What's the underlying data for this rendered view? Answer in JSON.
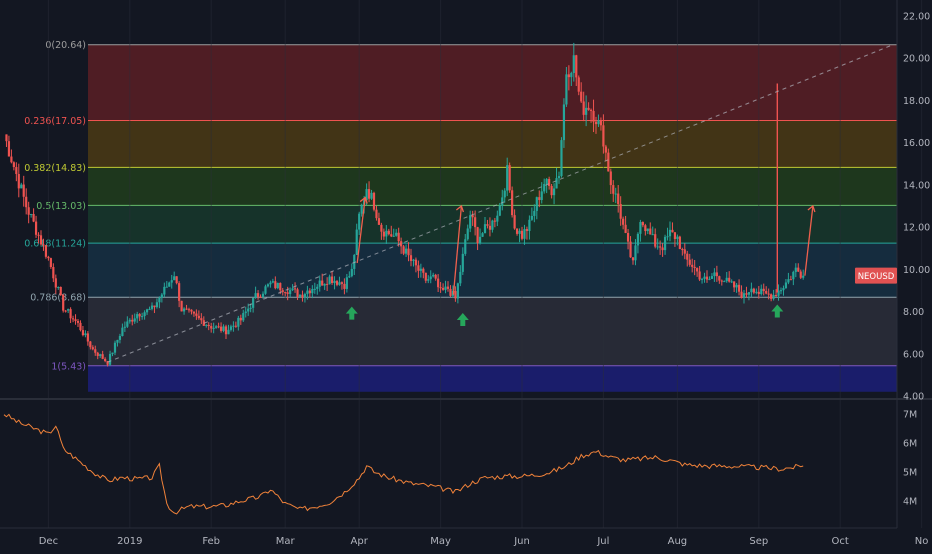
{
  "chart_data": {
    "type": "candlestick",
    "symbol_badge": "NEOUSD",
    "last_price": 9.7,
    "colors": {
      "background": "#131722",
      "grid": "#2a2e39",
      "up": "#26a69a",
      "down": "#ef5350",
      "volume_line": "#f0823a",
      "badge": "#e05252",
      "arrow_marker": "#26a65b",
      "projection_arrow": "#f0604d",
      "axis_text": "#b2b5be"
    },
    "price_axis": {
      "ticks": [
        "22.00",
        "20.00",
        "18.00",
        "16.00",
        "14.00",
        "12.00",
        "10.00",
        "8.00",
        "6.00",
        "4.00"
      ],
      "range": [
        4,
        22
      ]
    },
    "secondary_axis": {
      "ticks": [
        "7M",
        "6M",
        "5M",
        "4M"
      ],
      "range": [
        3.2,
        7.2
      ]
    },
    "time_axis": {
      "labels": [
        "Dec",
        "2019",
        "Feb",
        "Mar",
        "Apr",
        "May",
        "Jun",
        "Jul",
        "Aug",
        "Sep",
        "Oct",
        "No"
      ]
    },
    "fib_levels": [
      {
        "label": "0(20.64)",
        "price": 20.64,
        "color": "#9e9e9e",
        "fill": "#5a1e24"
      },
      {
        "label": "0.236(17.05)",
        "price": 17.05,
        "color": "#ef5350",
        "fill": "#4b3a14"
      },
      {
        "label": "0.382(14.83)",
        "price": 14.83,
        "color": "#c0ca33",
        "fill": "#213d1c"
      },
      {
        "label": "0.5(13.03)",
        "price": 13.03,
        "color": "#66bb6a",
        "fill": "#18382b"
      },
      {
        "label": "0.618(11.24)",
        "price": 11.24,
        "color": "#26a69a",
        "fill": "#163043"
      },
      {
        "label": "0.786(8.68)",
        "price": 8.68,
        "color": "#90a4ae",
        "fill": "#2b2e39"
      },
      {
        "label": "1(5.43)",
        "price": 5.43,
        "color": "#7e57c2",
        "fill": "#1c1f78"
      }
    ],
    "fib_floor": 4.2,
    "trend_line": [
      [
        0,
        5.6
      ],
      [
        66,
        20.64
      ]
    ],
    "ohlc_anchors": [
      [
        0,
        16.4
      ],
      [
        3,
        13.0
      ],
      [
        6,
        10.5
      ],
      [
        8,
        8.2
      ],
      [
        10,
        7.4
      ],
      [
        12,
        6.2
      ],
      [
        14,
        5.6
      ],
      [
        16,
        7.2
      ],
      [
        18,
        7.9
      ],
      [
        20,
        8.1
      ],
      [
        22,
        9.2
      ],
      [
        23,
        9.8
      ],
      [
        24,
        8.1
      ],
      [
        26,
        7.7
      ],
      [
        28,
        7.3
      ],
      [
        30,
        7.1
      ],
      [
        32,
        7.6
      ],
      [
        34,
        8.7
      ],
      [
        36,
        9.3
      ],
      [
        38,
        9.1
      ],
      [
        40,
        8.8
      ],
      [
        42,
        9.2
      ],
      [
        44,
        9.6
      ],
      [
        46,
        9.3
      ],
      [
        47,
        9.9
      ],
      [
        48,
        12.5
      ],
      [
        49,
        13.9
      ],
      [
        50,
        13.1
      ],
      [
        51,
        11.9
      ],
      [
        53,
        11.5
      ],
      [
        55,
        10.4
      ],
      [
        57,
        9.5
      ],
      [
        58,
        9.6
      ],
      [
        59,
        8.9
      ],
      [
        60,
        9.1
      ],
      [
        61,
        8.6
      ],
      [
        62,
        10.6
      ],
      [
        63,
        12.6
      ],
      [
        64,
        11.5
      ],
      [
        66,
        12.2
      ],
      [
        67,
        13.0
      ],
      [
        68,
        14.6
      ],
      [
        69,
        12.0
      ],
      [
        70,
        11.6
      ],
      [
        71,
        12.1
      ],
      [
        72,
        13.2
      ],
      [
        73,
        14.1
      ],
      [
        74,
        13.8
      ],
      [
        75,
        14.6
      ],
      [
        76,
        19.4
      ],
      [
        77,
        19.9
      ],
      [
        78,
        17.6
      ],
      [
        79,
        17.8
      ],
      [
        80,
        17.2
      ],
      [
        81,
        16.2
      ],
      [
        82,
        14.1
      ],
      [
        83,
        13.1
      ],
      [
        84,
        11.5
      ],
      [
        85,
        10.2
      ],
      [
        86,
        12.5
      ],
      [
        87,
        11.8
      ],
      [
        88,
        11.2
      ],
      [
        89,
        11.1
      ],
      [
        90,
        11.7
      ],
      [
        91,
        11.5
      ],
      [
        92,
        10.5
      ],
      [
        93,
        10.2
      ],
      [
        94,
        9.7
      ],
      [
        95,
        9.4
      ],
      [
        96,
        9.8
      ],
      [
        97,
        9.6
      ],
      [
        98,
        9.3
      ],
      [
        99,
        9.1
      ],
      [
        100,
        8.7
      ],
      [
        101,
        9.2
      ],
      [
        102,
        8.9
      ],
      [
        103,
        8.8
      ],
      [
        104,
        8.8
      ],
      [
        105,
        9.1
      ],
      [
        106,
        9.5
      ],
      [
        107,
        10.0
      ],
      [
        108,
        9.7
      ]
    ],
    "spike": {
      "x": 104.5,
      "high": 18.8,
      "low": 8.9
    },
    "big_up_arrows": [
      [
        48,
        10.3,
        13.4
      ],
      [
        61,
        8.8,
        13.0
      ],
      [
        108.5,
        9.7,
        13.0
      ]
    ],
    "marker_arrows": [
      [
        47,
        7.9
      ],
      [
        62,
        7.6
      ],
      [
        104.5,
        8.0
      ]
    ],
    "secondary_series": [
      [
        0,
        7.0
      ],
      [
        2,
        6.7
      ],
      [
        4,
        6.5
      ],
      [
        6,
        6.3
      ],
      [
        7,
        6.6
      ],
      [
        8,
        5.8
      ],
      [
        10,
        5.4
      ],
      [
        12,
        5.0
      ],
      [
        14,
        4.7
      ],
      [
        16,
        4.8
      ],
      [
        18,
        4.75
      ],
      [
        20,
        4.8
      ],
      [
        21,
        5.2
      ],
      [
        22,
        3.9
      ],
      [
        23,
        3.6
      ],
      [
        25,
        3.8
      ],
      [
        28,
        3.8
      ],
      [
        30,
        3.85
      ],
      [
        32,
        4.0
      ],
      [
        34,
        4.1
      ],
      [
        35,
        4.2
      ],
      [
        36,
        4.4
      ],
      [
        38,
        3.9
      ],
      [
        40,
        3.7
      ],
      [
        42,
        3.8
      ],
      [
        44,
        3.95
      ],
      [
        46,
        4.3
      ],
      [
        48,
        4.8
      ],
      [
        49,
        5.2
      ],
      [
        50,
        5.0
      ],
      [
        52,
        4.8
      ],
      [
        55,
        4.6
      ],
      [
        58,
        4.5
      ],
      [
        61,
        4.3
      ],
      [
        63,
        4.6
      ],
      [
        65,
        4.8
      ],
      [
        68,
        4.85
      ],
      [
        70,
        4.85
      ],
      [
        72,
        4.9
      ],
      [
        74,
        5.0
      ],
      [
        76,
        5.2
      ],
      [
        78,
        5.55
      ],
      [
        80,
        5.7
      ],
      [
        82,
        5.5
      ],
      [
        84,
        5.4
      ],
      [
        86,
        5.45
      ],
      [
        88,
        5.5
      ],
      [
        90,
        5.4
      ],
      [
        92,
        5.25
      ],
      [
        95,
        5.2
      ],
      [
        98,
        5.2
      ],
      [
        102,
        5.15
      ],
      [
        105,
        5.1
      ],
      [
        108,
        5.2
      ]
    ],
    "months_x": [
      6,
      17,
      28,
      38,
      48,
      59,
      70,
      81,
      91,
      102,
      113,
      124
    ]
  }
}
